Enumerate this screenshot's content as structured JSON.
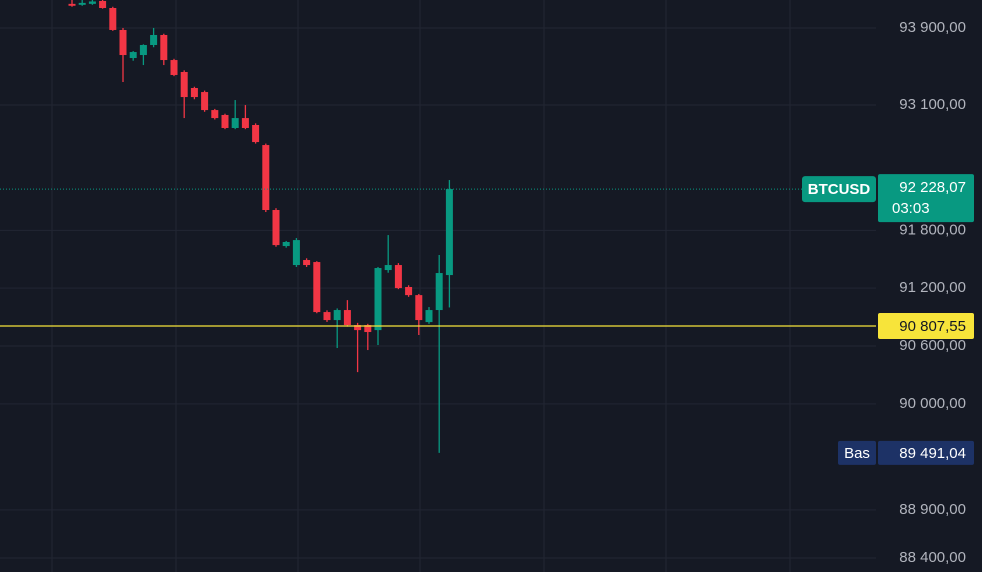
{
  "chart_data": {
    "type": "candlestick",
    "symbol": "BTCUSD",
    "countdown": "03:03",
    "up_color": "#089981",
    "down_color": "#f23645",
    "open": [
      94150,
      94140,
      94150,
      94180,
      94107,
      93879,
      93588,
      93619,
      93723,
      93827,
      93567,
      93443,
      93277,
      93235,
      93048,
      92997,
      92862,
      92965,
      92893,
      92685,
      92011,
      91637,
      91440,
      91492,
      91471,
      90952,
      90869,
      90973,
      90817,
      90817,
      90765,
      91388,
      91440,
      91212,
      91128,
      90848,
      90973,
      91336
    ],
    "high": [
      94190,
      94190,
      94190,
      94190,
      94120,
      93900,
      93660,
      93730,
      93900,
      93840,
      93580,
      93460,
      93290,
      93250,
      93060,
      93010,
      93152,
      93100,
      92910,
      92700,
      92030,
      91690,
      91720,
      91510,
      91480,
      90970,
      90990,
      91076,
      90840,
      90830,
      91420,
      91751,
      91460,
      91230,
      91140,
      91004,
      91544,
      92322
    ],
    "low": [
      94120,
      94130,
      94140,
      94100,
      93870,
      93339,
      93560,
      93515,
      93700,
      93515,
      93400,
      92965,
      93160,
      93030,
      92950,
      92850,
      92850,
      92850,
      92700,
      91990,
      91630,
      91620,
      91420,
      91420,
      90940,
      90850,
      90579,
      90800,
      90329,
      90558,
      90610,
      91360,
      91190,
      91110,
      90714,
      90830,
      89491.04,
      91000
    ],
    "close": [
      94130,
      94160,
      94175,
      94107,
      93879,
      93619,
      93650,
      93723,
      93827,
      93567,
      93412,
      93183,
      93183,
      93048,
      92965,
      92862,
      92965,
      92862,
      92716,
      92011,
      91647,
      91679,
      91699,
      91440,
      90952,
      90869,
      90973,
      90817,
      90765,
      90745,
      91409,
      91440,
      91201,
      91128,
      90869,
      90973,
      91357,
      92228.07
    ],
    "ylim": [
      88255,
      94190
    ],
    "yticks": [
      {
        "value": 93900,
        "label": "93 900,00"
      },
      {
        "value": 93100,
        "label": "93 100,00"
      },
      {
        "value": 91800,
        "label": "91 800,00"
      },
      {
        "value": 91200,
        "label": "91 200,00"
      },
      {
        "value": 90600,
        "label": "90 600,00"
      },
      {
        "value": 90000,
        "label": "90 000,00"
      },
      {
        "value": 88900,
        "label": "88 900,00"
      },
      {
        "value": 88400,
        "label": "88 400,00"
      }
    ],
    "grid": true,
    "last_price": {
      "value": 92228.07,
      "label": "92 228,07",
      "color": "#089981"
    },
    "price_line": {
      "value": 90807.55,
      "label": "90 807,55",
      "color": "#f7e43a"
    },
    "low_marker": {
      "name": "Bas",
      "value": 89491.04,
      "label": "89 491,04",
      "color": "#1d3266"
    }
  }
}
